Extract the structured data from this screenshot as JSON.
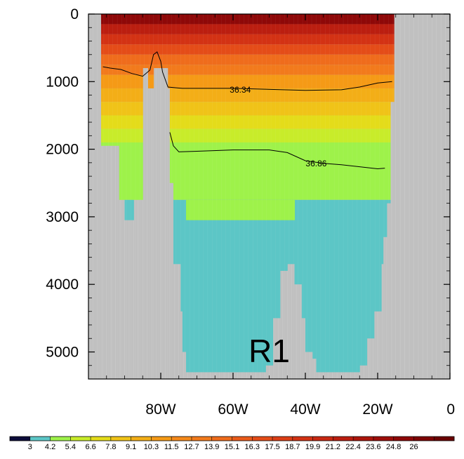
{
  "chart_data": {
    "type": "heatmap",
    "title": "",
    "xlabel": "",
    "ylabel": "",
    "region_label": "R1",
    "x_axis": {
      "range": [
        -100,
        0
      ],
      "ticks": [
        -80,
        -60,
        -40,
        -20,
        0
      ],
      "tick_labels": [
        "80W",
        "60W",
        "40W",
        "20W",
        "0"
      ],
      "minor_step": 5
    },
    "y_axis": {
      "range": [
        0,
        5400
      ],
      "inverted": true,
      "ticks": [
        0,
        1000,
        2000,
        3000,
        4000,
        5000
      ],
      "tick_labels": [
        "0",
        "1000",
        "2000",
        "3000",
        "4000",
        "5000"
      ],
      "minor_step": 200
    },
    "colorbar": {
      "colors": [
        "#0d0d3a",
        "#5cc6c6",
        "#9ef24a",
        "#c8ec2a",
        "#e4dc1a",
        "#f0c318",
        "#f3ae17",
        "#f59a16",
        "#f5891a",
        "#f27a1c",
        "#ef6c1c",
        "#ea5b1a",
        "#e44c18",
        "#dc3e16",
        "#d33214",
        "#c82812",
        "#bb1e10",
        "#ad160c",
        "#9e0e0a",
        "#8e0808",
        "#7d0404",
        "#6a0202"
      ],
      "labels": [
        "3",
        "4.2",
        "5.4",
        "6.6",
        "7.8",
        "9.1",
        "10.3",
        "11.5",
        "12.7",
        "13.9",
        "15.1",
        "16.3",
        "17.5",
        "18.7",
        "19.9",
        "21.2",
        "22.4",
        "23.6",
        "24.8",
        "26"
      ],
      "label_start_box": 1
    },
    "land_color": "#c0c0c0",
    "ocean_columns": [
      {
        "x": [
          -96.5,
          -91.5
        ],
        "bottom": 1950
      },
      {
        "x": [
          -91.5,
          -90
        ],
        "bottom": 2750
      },
      {
        "x": [
          -90,
          -87.5
        ],
        "bottom": 3050
      },
      {
        "x": [
          -87.5,
          -85
        ],
        "bottom": 2750
      },
      {
        "x": [
          -85,
          -83.5
        ],
        "bottom": 800
      },
      {
        "x": [
          -83.5,
          -82
        ],
        "bottom": 1100
      },
      {
        "x": [
          -82,
          -80
        ],
        "bottom": 800
      },
      {
        "x": [
          -80,
          -78
        ],
        "bottom": 800
      },
      {
        "x": [
          -78,
          -77.5
        ],
        "bottom": 1100
      },
      {
        "x": [
          -77.5,
          -76.5
        ],
        "bottom": 2500
      },
      {
        "x": [
          -76.5,
          -74.5
        ],
        "bottom": 3700
      },
      {
        "x": [
          -74.5,
          -74
        ],
        "bottom": 4400
      },
      {
        "x": [
          -74,
          -73
        ],
        "bottom": 5000
      },
      {
        "x": [
          -73,
          -71
        ],
        "bottom": 5300
      },
      {
        "x": [
          -71,
          -51
        ],
        "bottom": 5300
      },
      {
        "x": [
          -51,
          -49
        ],
        "bottom": 5200
      },
      {
        "x": [
          -49,
          -47
        ],
        "bottom": 4500
      },
      {
        "x": [
          -47,
          -45
        ],
        "bottom": 3800
      },
      {
        "x": [
          -45,
          -43
        ],
        "bottom": 3700
      },
      {
        "x": [
          -43,
          -41
        ],
        "bottom": 4000
      },
      {
        "x": [
          -41,
          -40
        ],
        "bottom": 4500
      },
      {
        "x": [
          -40,
          -38
        ],
        "bottom": 5000
      },
      {
        "x": [
          -38,
          -37
        ],
        "bottom": 5100
      },
      {
        "x": [
          -37,
          -27
        ],
        "bottom": 5300
      },
      {
        "x": [
          -27,
          -25
        ],
        "bottom": 5300
      },
      {
        "x": [
          -25,
          -23
        ],
        "bottom": 5200
      },
      {
        "x": [
          -23,
          -21
        ],
        "bottom": 4800
      },
      {
        "x": [
          -21,
          -19
        ],
        "bottom": 4400
      },
      {
        "x": [
          -19,
          -18.5
        ],
        "bottom": 3700
      },
      {
        "x": [
          -18.5,
          -17.5
        ],
        "bottom": 3300
      },
      {
        "x": [
          -17.5,
          -16.5
        ],
        "bottom": 2800
      },
      {
        "x": [
          -16.5,
          -15.5
        ],
        "bottom": 1300
      }
    ],
    "temperature_layers": [
      {
        "top": 0,
        "bottom": 150,
        "color": "#8e0808"
      },
      {
        "top": 150,
        "bottom": 300,
        "color": "#bb1e10"
      },
      {
        "top": 300,
        "bottom": 450,
        "color": "#d33214"
      },
      {
        "top": 450,
        "bottom": 600,
        "color": "#e44c18"
      },
      {
        "top": 600,
        "bottom": 750,
        "color": "#ef6c1c"
      },
      {
        "top": 750,
        "bottom": 900,
        "color": "#f27a1c"
      },
      {
        "top": 900,
        "bottom": 1100,
        "color": "#f59a16"
      },
      {
        "top": 1100,
        "bottom": 1300,
        "color": "#f3ae17"
      },
      {
        "top": 1300,
        "bottom": 1500,
        "color": "#f0c318"
      },
      {
        "top": 1500,
        "bottom": 1700,
        "color": "#e4dc1a"
      },
      {
        "top": 1700,
        "bottom": 1900,
        "color": "#c8ec2a"
      },
      {
        "top": 1900,
        "bottom": 2750,
        "color": "#9ef24a"
      },
      {
        "top": 2750,
        "bottom": 6000,
        "color": "#5cc6c6"
      }
    ],
    "deep_water_lateral": {
      "left_x": -73,
      "right_x": -43,
      "top_depth": 3050
    },
    "contours": [
      {
        "label": "36.34",
        "label_pos": [
          -58,
          1120
        ],
        "points": [
          [
            -96,
            780
          ],
          [
            -94,
            800
          ],
          [
            -91,
            820
          ],
          [
            -88,
            880
          ],
          [
            -85,
            920
          ],
          [
            -83,
            830
          ],
          [
            -82,
            600
          ],
          [
            -81,
            560
          ],
          [
            -80,
            700
          ],
          [
            -79.5,
            860
          ],
          [
            -78,
            1080
          ],
          [
            -74,
            1100
          ],
          [
            -60,
            1100
          ],
          [
            -40,
            1130
          ],
          [
            -30,
            1120
          ],
          [
            -25,
            1080
          ],
          [
            -20,
            1020
          ],
          [
            -16,
            1000
          ]
        ]
      },
      {
        "label": "36.86",
        "label_pos": [
          -37,
          2210
        ],
        "points": [
          [
            -77.5,
            1750
          ],
          [
            -76.5,
            1950
          ],
          [
            -75,
            2040
          ],
          [
            -70,
            2030
          ],
          [
            -60,
            2010
          ],
          [
            -50,
            2010
          ],
          [
            -45,
            2050
          ],
          [
            -40,
            2170
          ],
          [
            -35,
            2210
          ],
          [
            -30,
            2230
          ],
          [
            -25,
            2260
          ],
          [
            -20,
            2290
          ],
          [
            -18,
            2280
          ]
        ]
      }
    ]
  }
}
